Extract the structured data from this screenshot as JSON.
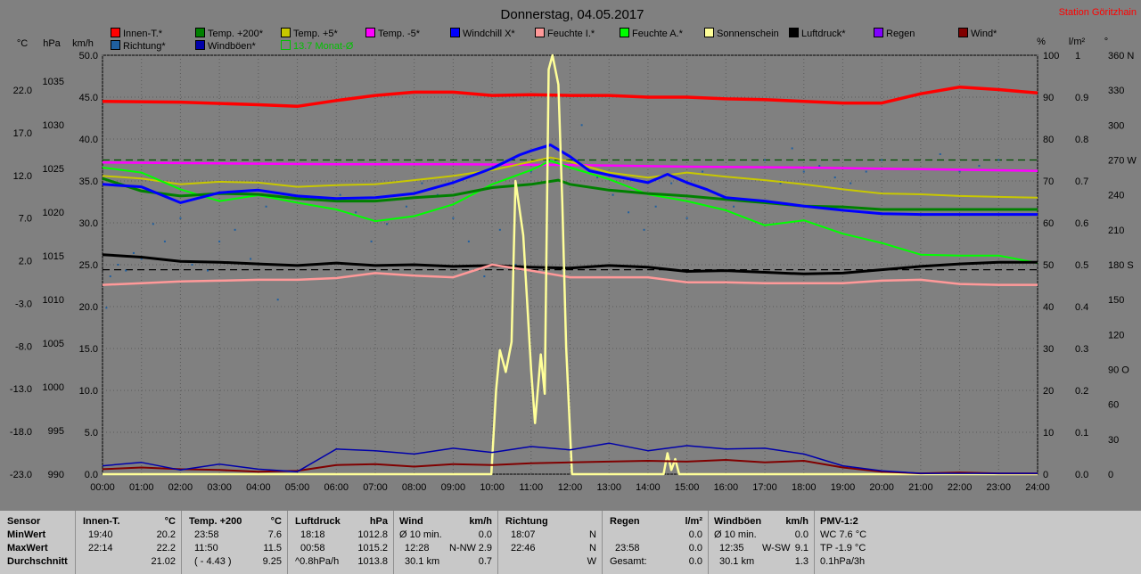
{
  "title": "Donnerstag, 04.05.2017",
  "station": "Station Göritzhain",
  "colors": {
    "innen": "#ff0000",
    "temp200": "#008000",
    "temp5": "#c8c800",
    "temp_5": "#ff00ff",
    "windchill": "#0000ff",
    "feuchte_i": "#ff9999",
    "feuchte_a": "#00ff00",
    "sonnenschein": "#ffff99",
    "luftdruck": "#000000",
    "regen": "#8000ff",
    "wind": "#800000",
    "richtung": "#1f5f9f",
    "windboeen": "#0000aa",
    "monat": "#00c000"
  },
  "legend": [
    {
      "label": "Innen-T.*",
      "color": "#ff0000"
    },
    {
      "label": "Temp. +200*",
      "color": "#008000"
    },
    {
      "label": "Temp. +5*",
      "color": "#c8c800"
    },
    {
      "label": "Temp. -5*",
      "color": "#ff00ff"
    },
    {
      "label": "Windchill X*",
      "color": "#0000ff"
    },
    {
      "label": "Feuchte I.*",
      "color": "#ff9999"
    },
    {
      "label": "Feuchte A.*",
      "color": "#00ff00"
    },
    {
      "label": "Sonnenschein",
      "color": "#ffff99"
    },
    {
      "label": "Luftdruck*",
      "color": "#000000"
    },
    {
      "label": "Regen",
      "color": "#8000ff"
    },
    {
      "label": "Wind*",
      "color": "#800000"
    },
    {
      "label": "Richtung*",
      "color": "#1f5f9f"
    },
    {
      "label": "Windböen*",
      "color": "#0000aa"
    },
    {
      "label": "13.7 Monat-Ø",
      "color": "#00c000",
      "outline": true
    }
  ],
  "axis_units": {
    "c": "°C",
    "hpa": "hPa",
    "kmh": "km/h",
    "pct": "%",
    "lm2": "l/m²",
    "deg": "°"
  },
  "chart_data": {
    "type": "line",
    "title": "Donnerstag, 04.05.2017",
    "x_ticks": [
      "00:00",
      "01:00",
      "02:00",
      "03:00",
      "04:00",
      "05:00",
      "06:00",
      "07:00",
      "08:00",
      "09:00",
      "10:00",
      "11:00",
      "12:00",
      "13:00",
      "14:00",
      "15:00",
      "16:00",
      "17:00",
      "18:00",
      "19:00",
      "20:00",
      "21:00",
      "22:00",
      "23:00",
      "24:00"
    ],
    "xlim": [
      0,
      24
    ],
    "ylim_kmh": [
      0,
      50
    ],
    "axes": {
      "temp_c": {
        "ticks": [
          "22.0",
          "17.0",
          "12.0",
          "7.0",
          "2.0",
          "-3.0",
          "-8.0",
          "-13.0",
          "-18.0",
          "-23.0"
        ],
        "range": [
          -23,
          22
        ]
      },
      "pressure_hpa": {
        "ticks": [
          "1035",
          "1030",
          "1025",
          "1020",
          "1015",
          "1010",
          "1005",
          "1000",
          "995",
          "990"
        ],
        "range": [
          990,
          1035
        ]
      },
      "speed_kmh": {
        "ticks": [
          "50.0",
          "45.0",
          "40.0",
          "35.0",
          "30.0",
          "25.0",
          "20.0",
          "15.0",
          "10.0",
          "5.0",
          "0.0"
        ],
        "range": [
          0,
          50
        ]
      },
      "percent": {
        "ticks": [
          "100",
          "90",
          "80",
          "70",
          "60",
          "50",
          "40",
          "30",
          "20",
          "10",
          "0"
        ],
        "range": [
          0,
          100
        ]
      },
      "rain_lm2": {
        "ticks": [
          "1",
          "0.9",
          "0.8",
          "0.7",
          "0.6",
          "0.5",
          "0.4",
          "0.3",
          "0.2",
          "0.1",
          "0.0"
        ],
        "range": [
          0,
          1
        ]
      },
      "direction_deg": {
        "ticks": [
          "360 N",
          "330",
          "300",
          "270 W",
          "240",
          "210",
          "180 S",
          "150",
          "120",
          "90 O",
          "60",
          "30",
          "0"
        ],
        "range": [
          0,
          360
        ]
      }
    },
    "series": [
      {
        "name": "Innen-T.*",
        "color": "#ff0000",
        "width": 3.5,
        "x": [
          0,
          2,
          4,
          5,
          6,
          7,
          8,
          9,
          10,
          11,
          12,
          13,
          14,
          15,
          16,
          17,
          18,
          19,
          20,
          21,
          22,
          23,
          24
        ],
        "y": [
          44.5,
          44.4,
          44.1,
          43.9,
          44.6,
          45.2,
          45.6,
          45.6,
          45.2,
          45.3,
          45.2,
          45.2,
          45.0,
          45.0,
          44.8,
          44.7,
          44.5,
          44.3,
          44.3,
          45.4,
          46.2,
          45.9,
          45.5
        ]
      },
      {
        "name": "Temp. -5*",
        "color": "#ff00ff",
        "width": 2.5,
        "x": [
          0,
          3,
          6,
          9,
          12,
          15,
          18,
          21,
          24
        ],
        "y": [
          37.2,
          37.1,
          37.0,
          37.0,
          36.9,
          36.7,
          36.6,
          36.4,
          36.2
        ]
      },
      {
        "name": "Temp. +5*",
        "color": "#c8c800",
        "width": 2,
        "x": [
          0,
          1,
          2,
          3,
          4,
          5,
          6,
          7,
          8,
          9,
          10,
          11,
          11.5,
          12,
          13,
          14,
          15,
          16,
          17,
          18,
          19,
          20,
          21,
          22,
          23,
          24
        ],
        "y": [
          35.6,
          35.3,
          34.6,
          34.9,
          34.8,
          34.3,
          34.5,
          34.6,
          35.1,
          35.6,
          36.3,
          37.3,
          37.8,
          37.3,
          36.0,
          35.4,
          36.0,
          35.5,
          35.1,
          34.6,
          34.0,
          33.5,
          33.4,
          33.2,
          33.1,
          33.0
        ]
      },
      {
        "name": "Feuchte A.*",
        "color": "#00ff00",
        "width": 2,
        "x": [
          0,
          1,
          2,
          3,
          4,
          5,
          6,
          7,
          8,
          9,
          10,
          11,
          11.5,
          12,
          13,
          14,
          15,
          16,
          17,
          18,
          19,
          20,
          21,
          22,
          23,
          24
        ],
        "y": [
          36.6,
          36.0,
          34.0,
          32.6,
          33.3,
          32.4,
          31.6,
          30.2,
          30.8,
          32.2,
          34.6,
          36.3,
          37.4,
          36.6,
          35.2,
          33.4,
          32.6,
          31.5,
          29.7,
          30.3,
          28.7,
          27.6,
          26.2,
          26.1,
          26.1,
          25.2
        ]
      },
      {
        "name": "Temp. +200*",
        "color": "#008000",
        "width": 3,
        "x": [
          0,
          1,
          2,
          3,
          4,
          5,
          6,
          7,
          8,
          9,
          10,
          11,
          11.7,
          12,
          13,
          14,
          15,
          16,
          17,
          18,
          19,
          20,
          21,
          22,
          23,
          24
        ],
        "y": [
          35.3,
          33.8,
          33.2,
          33.5,
          33.4,
          32.9,
          32.6,
          32.6,
          33.0,
          33.3,
          34.2,
          34.6,
          35.1,
          34.6,
          33.9,
          33.5,
          33.2,
          32.8,
          32.4,
          32.0,
          31.9,
          31.6,
          31.6,
          31.6,
          31.6,
          31.6
        ]
      },
      {
        "name": "Windchill X*",
        "color": "#0000ff",
        "width": 3,
        "x": [
          0,
          1,
          2,
          3,
          4,
          5,
          6,
          7,
          8,
          9,
          10,
          10.7,
          11,
          11.5,
          12,
          12.5,
          13,
          14,
          14.5,
          15,
          15.5,
          16,
          17,
          18,
          19,
          20,
          21,
          22,
          23,
          24
        ],
        "y": [
          34.6,
          34.3,
          32.4,
          33.6,
          33.9,
          33.2,
          32.9,
          33.0,
          33.5,
          34.8,
          36.5,
          38.1,
          38.6,
          39.3,
          37.9,
          36.2,
          35.7,
          34.8,
          35.8,
          34.8,
          34.0,
          33.0,
          32.6,
          32.0,
          31.5,
          31.1,
          31.0,
          31.0,
          31.0,
          31.0
        ]
      },
      {
        "name": "Luftdruck*",
        "color": "#000000",
        "width": 3,
        "x": [
          0,
          1,
          2,
          3,
          4,
          5,
          6,
          7,
          8,
          9,
          10,
          11,
          12,
          13,
          14,
          15,
          16,
          17,
          18,
          19,
          20,
          21,
          22,
          23,
          24
        ],
        "y": [
          26.2,
          25.9,
          25.4,
          25.3,
          25.1,
          24.9,
          25.2,
          24.9,
          25.0,
          24.8,
          24.9,
          24.7,
          24.6,
          24.9,
          24.7,
          24.2,
          24.3,
          24.1,
          23.9,
          24.0,
          24.4,
          24.8,
          25.1,
          25.3,
          25.3
        ]
      },
      {
        "name": "Feuchte I.*",
        "color": "#ff9999",
        "width": 2.5,
        "x": [
          0,
          1,
          2,
          3,
          4,
          5,
          6,
          7,
          8,
          9,
          10,
          11,
          12,
          13,
          14,
          15,
          16,
          17,
          18,
          19,
          20,
          21,
          22,
          23,
          24
        ],
        "y": [
          22.6,
          22.8,
          23.0,
          23.1,
          23.2,
          23.2,
          23.4,
          24.0,
          23.7,
          23.5,
          25.0,
          24.3,
          23.5,
          23.5,
          23.5,
          22.9,
          22.9,
          22.8,
          22.8,
          22.8,
          23.1,
          23.2,
          22.7,
          22.6,
          22.6
        ]
      },
      {
        "name": "Sonnenschein",
        "color": "#ffff99",
        "width": 2.5,
        "x": [
          0,
          9.98,
          10.1,
          10.2,
          10.35,
          10.5,
          10.6,
          10.8,
          11.0,
          11.1,
          11.25,
          11.35,
          11.45,
          11.55,
          11.7,
          11.8,
          11.9,
          12.0,
          12.05,
          14.4,
          14.5,
          14.6,
          14.7,
          14.8,
          24
        ],
        "y": [
          0,
          0,
          10,
          14.8,
          12.2,
          15.8,
          35.0,
          28.5,
          12.5,
          6.1,
          14.3,
          9.6,
          48.3,
          50.0,
          46.5,
          32.4,
          15.2,
          5.0,
          0,
          0,
          2.5,
          0.5,
          1.8,
          0,
          0
        ]
      },
      {
        "name": "Wind*",
        "color": "#800000",
        "width": 2,
        "x": [
          0,
          1,
          2,
          3,
          4,
          5,
          6,
          7,
          8,
          9,
          10,
          11,
          12,
          13,
          14,
          15,
          16,
          17,
          18,
          19,
          20,
          21,
          22,
          23,
          24
        ],
        "y": [
          0.6,
          0.8,
          0.6,
          0.5,
          0.3,
          0.4,
          1.1,
          1.2,
          0.9,
          1.2,
          1.1,
          1.3,
          1.4,
          1.5,
          1.6,
          1.5,
          1.7,
          1.4,
          1.6,
          0.8,
          0.3,
          0.1,
          0.2,
          0.1,
          0.1
        ]
      },
      {
        "name": "Windböen*",
        "color": "#0000aa",
        "width": 1.5,
        "x": [
          0,
          1,
          2,
          3,
          4,
          5,
          6,
          7,
          8,
          9,
          10,
          11,
          12,
          13,
          14,
          15,
          16,
          17,
          18,
          19,
          20,
          21,
          22,
          23,
          24
        ],
        "y": [
          1.0,
          1.4,
          0.5,
          1.2,
          0.6,
          0.3,
          3.0,
          2.8,
          2.4,
          3.1,
          2.6,
          3.3,
          2.9,
          3.7,
          2.8,
          3.4,
          3.0,
          3.1,
          2.4,
          1.0,
          0.4,
          0.1,
          0.1,
          0.1,
          0.1
        ]
      }
    ],
    "reference_lines": [
      {
        "name": "13.7 Monat-Ø",
        "y": 37.5,
        "color": "#005000"
      },
      {
        "name": "Luftdruck-Ø",
        "y": 24.4,
        "color": "#000000"
      }
    ],
    "richtung_points": {
      "name": "Richtung*",
      "color": "#1f5f9f",
      "unit": "deg",
      "x": [
        0.1,
        0.2,
        0.4,
        0.6,
        0.8,
        1.0,
        1.3,
        1.6,
        2.0,
        2.3,
        2.7,
        3.0,
        3.4,
        3.8,
        4.2,
        4.5,
        6.1,
        6.5,
        6.9,
        7.3,
        7.8,
        8.2,
        8.6,
        9.0,
        9.4,
        9.8,
        10.2,
        10.6,
        11.0,
        11.4,
        11.8,
        12.3,
        12.7,
        13.1,
        13.5,
        13.9,
        14.2,
        14.6,
        15.0,
        15.4,
        15.8,
        16.2,
        16.6,
        17.0,
        17.4,
        17.7,
        18.0,
        18.4,
        18.8,
        19.2,
        19.6,
        20.0,
        21.5,
        22.0,
        22.5,
        23.0
      ],
      "y": [
        143,
        170,
        180,
        175,
        190,
        185,
        215,
        200,
        220,
        180,
        175,
        200,
        210,
        185,
        230,
        150,
        240,
        225,
        200,
        215,
        230,
        250,
        240,
        220,
        200,
        170,
        210,
        180,
        260,
        280,
        270,
        300,
        255,
        240,
        225,
        210,
        230,
        250,
        220,
        260,
        240,
        230,
        235,
        270,
        250,
        280,
        260,
        265,
        255,
        250,
        260,
        270,
        275,
        260,
        265,
        270
      ]
    }
  },
  "stats": {
    "sensor": {
      "header": "Sensor",
      "min": "MinWert",
      "max": "MaxWert",
      "avg": "Durchschnitt"
    },
    "innen": {
      "header": "Innen-T.",
      "unit": "°C",
      "min_time": "19:40",
      "min_val": "20.2",
      "max_time": "22:14",
      "max_val": "22.2",
      "avg_val": "21.02"
    },
    "temp200": {
      "header": "Temp. +200",
      "unit": "°C",
      "min_time": "23:58",
      "min_val": "7.6",
      "max_time": "11:50",
      "max_val": "11.5",
      "avg_time": "( - 4.43 )",
      "avg_val": "9.25"
    },
    "luftdruck": {
      "header": "Luftdruck",
      "unit": "hPa",
      "min_time": "18:18",
      "min_val": "1012.8",
      "max_time": "00:58",
      "max_val": "1015.2",
      "avg_time": "^0.8hPa/h",
      "avg_val": "1013.8"
    },
    "wind": {
      "header": "Wind",
      "unit": "km/h",
      "min_time": "Ø 10 min.",
      "min_val": "0.0",
      "max_time": "12:28",
      "max_mid": "N-NW",
      "max_val": "2.9",
      "avg_time": "30.1 km",
      "avg_val": "0.7"
    },
    "richtung": {
      "header": "Richtung",
      "min_time": "18:07",
      "min_val": "N",
      "max_time": "22:46",
      "max_val": "N",
      "avg_val": "W"
    },
    "regen": {
      "header": "Regen",
      "unit": "l/m²",
      "min_val": "0.0",
      "max_time": "23:58",
      "max_val": "0.0",
      "avg_time": "Gesamt:",
      "avg_val": "0.0"
    },
    "boeen": {
      "header": "Windböen",
      "unit": "km/h",
      "min_time": "Ø 10 min.",
      "min_val": "0.0",
      "max_time": "12:35",
      "max_mid": "W-SW",
      "max_val": "9.1",
      "avg_time": "30.1 km",
      "avg_val": "1.3"
    },
    "pmv": {
      "header": "PMV-1:2",
      "min_val": "WC 7.6 °C",
      "max_val": "TP -1.9 °C",
      "avg_val": "0.1hPa/3h"
    }
  }
}
